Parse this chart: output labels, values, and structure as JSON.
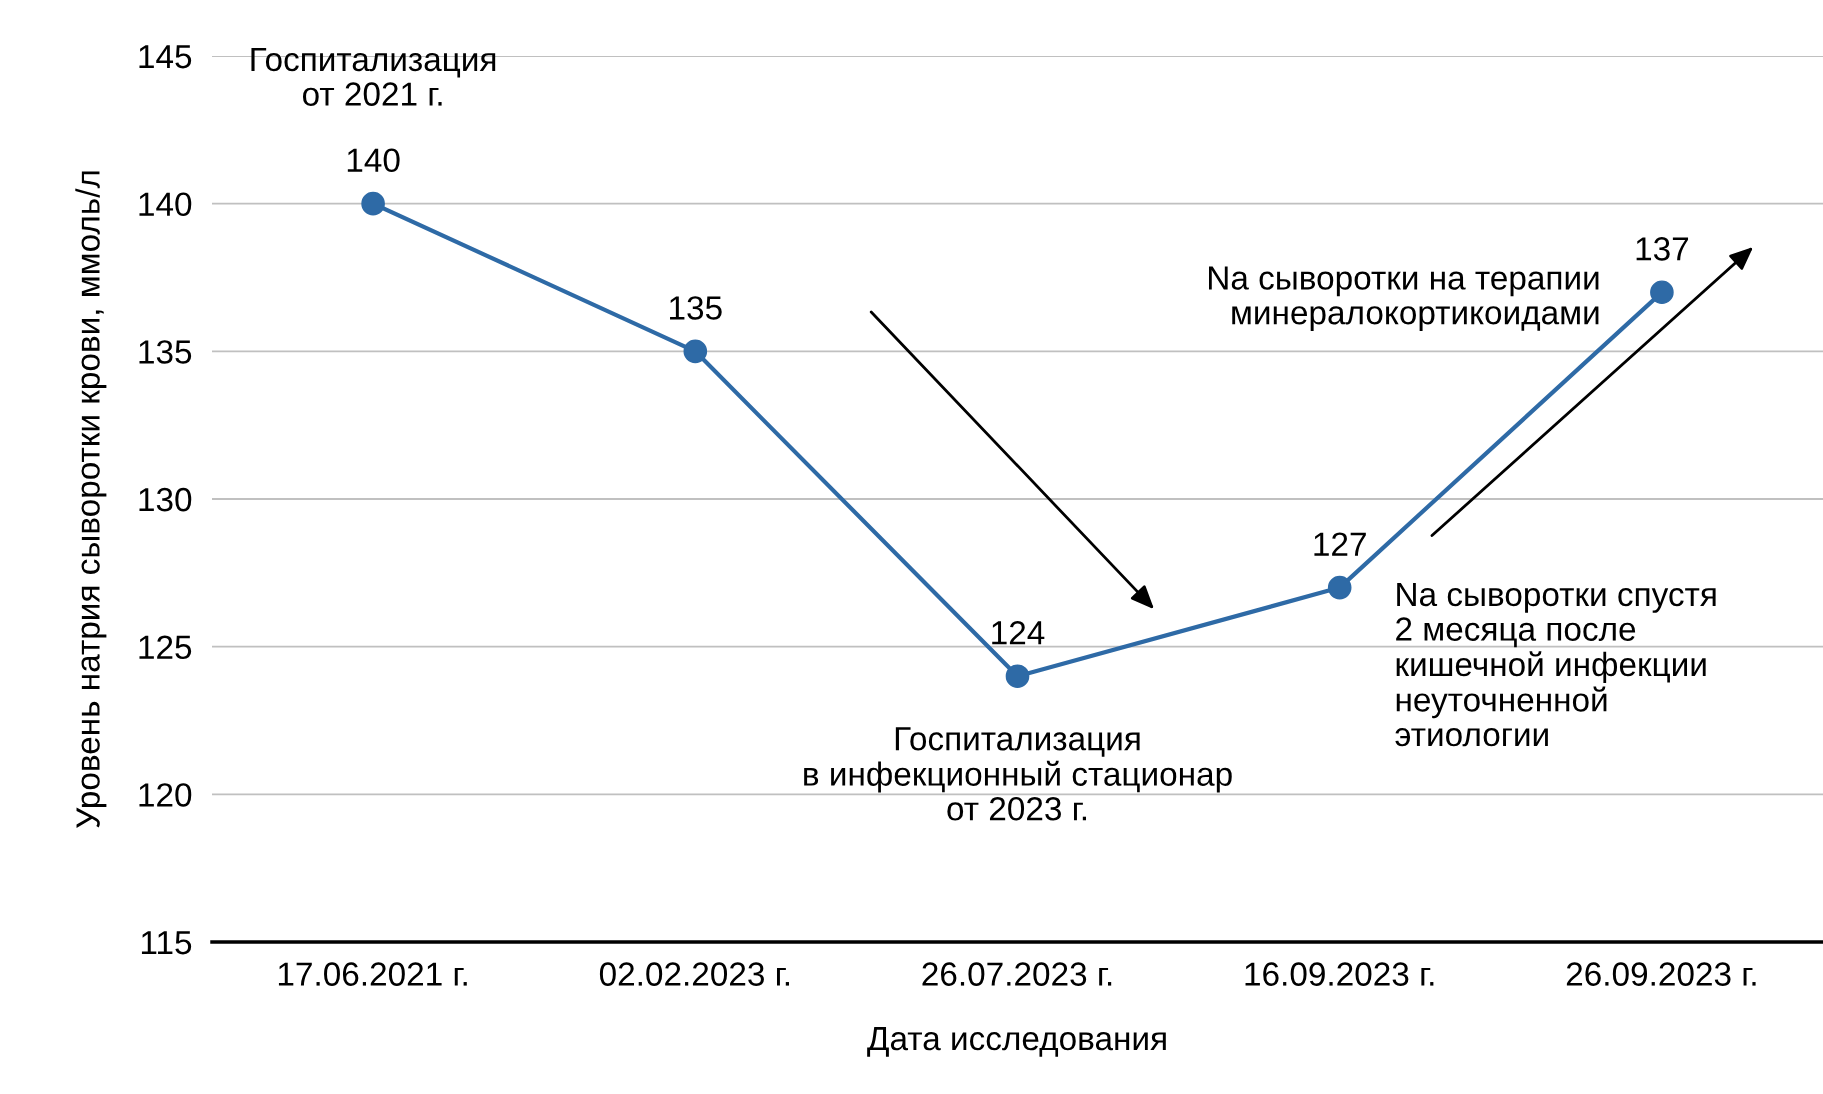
{
  "chart_data": {
    "type": "line",
    "xlabel": "Дата исследования",
    "ylabel": "Уровень натрия сыворотки крови, ммоль/л",
    "categories": [
      "17.06.2021 г.",
      "02.02.2023 г.",
      "26.07.2023 г.",
      "16.09.2023 г.",
      "26.09.2023 г."
    ],
    "series": [
      {
        "color": "#2e6aa6",
        "values": [
          140,
          135,
          124,
          127,
          137
        ]
      }
    ],
    "ylim": [
      115,
      145
    ],
    "yticks": [
      115,
      120,
      125,
      130,
      135,
      140,
      145
    ],
    "grid": "y",
    "marker": "circle",
    "line_style": "solid",
    "data_labels": true,
    "legend": false,
    "annotations": [
      "Госпитализация\nот 2021 г.",
      "Госпитализация\nв инфекционный стационар\nот 2023 г.",
      "Na сыворотки на терапии\nминералокортикоидами",
      "Na сыворотки спустя\n2 месяца после\nкишечной инфекции\nнеуточненной\nэтиологии"
    ]
  }
}
